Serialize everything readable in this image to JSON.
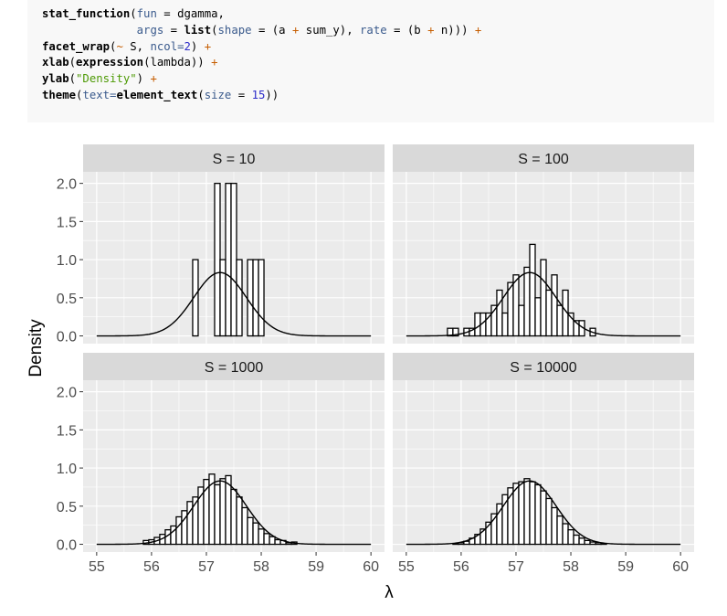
{
  "code": {
    "lines": [
      [
        {
          "t": "stat_function",
          "c": "fn"
        },
        {
          "t": "(",
          "c": ""
        },
        {
          "t": "fun",
          "c": "arg"
        },
        {
          "t": " = dgamma,",
          "c": ""
        }
      ],
      [
        {
          "t": "              ",
          "c": ""
        },
        {
          "t": "args",
          "c": "arg"
        },
        {
          "t": " = ",
          "c": ""
        },
        {
          "t": "list",
          "c": "fn"
        },
        {
          "t": "(",
          "c": ""
        },
        {
          "t": "shape",
          "c": "arg"
        },
        {
          "t": " = (a ",
          "c": ""
        },
        {
          "t": "+",
          "c": "op"
        },
        {
          "t": " sum_y), ",
          "c": ""
        },
        {
          "t": "rate",
          "c": "arg"
        },
        {
          "t": " = (b ",
          "c": ""
        },
        {
          "t": "+",
          "c": "op"
        },
        {
          "t": " n))) ",
          "c": ""
        },
        {
          "t": "+",
          "c": "op"
        }
      ],
      [
        {
          "t": "facet_wrap",
          "c": "fn"
        },
        {
          "t": "(",
          "c": ""
        },
        {
          "t": "~",
          "c": "op"
        },
        {
          "t": " S, ",
          "c": ""
        },
        {
          "t": "ncol=",
          "c": "arg"
        },
        {
          "t": "2",
          "c": "num"
        },
        {
          "t": ") ",
          "c": ""
        },
        {
          "t": "+",
          "c": "op"
        }
      ],
      [
        {
          "t": "xlab",
          "c": "fn"
        },
        {
          "t": "(",
          "c": ""
        },
        {
          "t": "expression",
          "c": "fn"
        },
        {
          "t": "(lambda)) ",
          "c": ""
        },
        {
          "t": "+",
          "c": "op"
        }
      ],
      [
        {
          "t": "ylab",
          "c": "fn"
        },
        {
          "t": "(",
          "c": ""
        },
        {
          "t": "\"Density\"",
          "c": "str"
        },
        {
          "t": ") ",
          "c": ""
        },
        {
          "t": "+",
          "c": "op"
        }
      ],
      [
        {
          "t": "theme",
          "c": "fn"
        },
        {
          "t": "(",
          "c": ""
        },
        {
          "t": "text=",
          "c": "arg"
        },
        {
          "t": "element_text",
          "c": "fn"
        },
        {
          "t": "(",
          "c": ""
        },
        {
          "t": "size",
          "c": "arg"
        },
        {
          "t": " = ",
          "c": ""
        },
        {
          "t": "15",
          "c": "num"
        },
        {
          "t": "))",
          "c": ""
        }
      ]
    ]
  },
  "chart_data": {
    "type": "histogram",
    "xlabel": "λ",
    "ylabel": "Density",
    "xlim": [
      55,
      60
    ],
    "ylim": [
      0,
      2.05
    ],
    "x_ticks": [
      "55",
      "56",
      "57",
      "58",
      "59",
      "60"
    ],
    "y_ticks": [
      "0.0",
      "0.5",
      "1.0",
      "1.5",
      "2.0"
    ],
    "binwidth": 0.1,
    "curve": {
      "name": "dgamma",
      "mean": 57.25,
      "sd": 0.48
    },
    "panels": [
      {
        "strip": "S = 10",
        "bins": [
          {
            "x": 56.8,
            "y": 1.0
          },
          {
            "x": 57.2,
            "y": 2.0
          },
          {
            "x": 57.3,
            "y": 1.0
          },
          {
            "x": 57.4,
            "y": 2.0
          },
          {
            "x": 57.5,
            "y": 2.0
          },
          {
            "x": 57.6,
            "y": 1.0
          },
          {
            "x": 57.8,
            "y": 1.0
          },
          {
            "x": 57.9,
            "y": 1.0
          },
          {
            "x": 58.0,
            "y": 1.0
          }
        ]
      },
      {
        "strip": "S = 100",
        "bins": [
          {
            "x": 55.8,
            "y": 0.1
          },
          {
            "x": 55.9,
            "y": 0.1
          },
          {
            "x": 56.0,
            "y": 0.0
          },
          {
            "x": 56.1,
            "y": 0.1
          },
          {
            "x": 56.2,
            "y": 0.1
          },
          {
            "x": 56.3,
            "y": 0.3
          },
          {
            "x": 56.4,
            "y": 0.3
          },
          {
            "x": 56.5,
            "y": 0.3
          },
          {
            "x": 56.6,
            "y": 0.4
          },
          {
            "x": 56.7,
            "y": 0.6
          },
          {
            "x": 56.8,
            "y": 0.3
          },
          {
            "x": 56.9,
            "y": 0.7
          },
          {
            "x": 57.0,
            "y": 0.8
          },
          {
            "x": 57.1,
            "y": 0.4
          },
          {
            "x": 57.2,
            "y": 0.9
          },
          {
            "x": 57.3,
            "y": 1.2
          },
          {
            "x": 57.4,
            "y": 0.5
          },
          {
            "x": 57.5,
            "y": 1.0
          },
          {
            "x": 57.6,
            "y": 0.6
          },
          {
            "x": 57.7,
            "y": 0.8
          },
          {
            "x": 57.8,
            "y": 0.4
          },
          {
            "x": 57.9,
            "y": 0.6
          },
          {
            "x": 58.0,
            "y": 0.3
          },
          {
            "x": 58.1,
            "y": 0.2
          },
          {
            "x": 58.2,
            "y": 0.2
          },
          {
            "x": 58.3,
            "y": 0.0
          },
          {
            "x": 58.4,
            "y": 0.1
          }
        ]
      },
      {
        "strip": "S = 1000",
        "bins": [
          {
            "x": 55.9,
            "y": 0.05
          },
          {
            "x": 56.0,
            "y": 0.06
          },
          {
            "x": 56.1,
            "y": 0.09
          },
          {
            "x": 56.2,
            "y": 0.13
          },
          {
            "x": 56.3,
            "y": 0.19
          },
          {
            "x": 56.4,
            "y": 0.24
          },
          {
            "x": 56.5,
            "y": 0.36
          },
          {
            "x": 56.6,
            "y": 0.44
          },
          {
            "x": 56.7,
            "y": 0.56
          },
          {
            "x": 56.8,
            "y": 0.62
          },
          {
            "x": 56.9,
            "y": 0.75
          },
          {
            "x": 57.0,
            "y": 0.85
          },
          {
            "x": 57.1,
            "y": 0.92
          },
          {
            "x": 57.2,
            "y": 0.78
          },
          {
            "x": 57.3,
            "y": 0.86
          },
          {
            "x": 57.4,
            "y": 0.9
          },
          {
            "x": 57.5,
            "y": 0.72
          },
          {
            "x": 57.6,
            "y": 0.62
          },
          {
            "x": 57.7,
            "y": 0.48
          },
          {
            "x": 57.8,
            "y": 0.35
          },
          {
            "x": 57.9,
            "y": 0.28
          },
          {
            "x": 58.0,
            "y": 0.2
          },
          {
            "x": 58.1,
            "y": 0.14
          },
          {
            "x": 58.2,
            "y": 0.1
          },
          {
            "x": 58.3,
            "y": 0.06
          },
          {
            "x": 58.4,
            "y": 0.05
          },
          {
            "x": 58.5,
            "y": 0.02
          },
          {
            "x": 58.6,
            "y": 0.03
          }
        ]
      },
      {
        "strip": "S = 10000",
        "bins": [
          {
            "x": 55.9,
            "y": 0.01
          },
          {
            "x": 56.0,
            "y": 0.02
          },
          {
            "x": 56.1,
            "y": 0.04
          },
          {
            "x": 56.2,
            "y": 0.08
          },
          {
            "x": 56.3,
            "y": 0.13
          },
          {
            "x": 56.4,
            "y": 0.2
          },
          {
            "x": 56.5,
            "y": 0.29
          },
          {
            "x": 56.6,
            "y": 0.4
          },
          {
            "x": 56.7,
            "y": 0.53
          },
          {
            "x": 56.8,
            "y": 0.65
          },
          {
            "x": 56.9,
            "y": 0.74
          },
          {
            "x": 57.0,
            "y": 0.8
          },
          {
            "x": 57.1,
            "y": 0.82
          },
          {
            "x": 57.2,
            "y": 0.86
          },
          {
            "x": 57.3,
            "y": 0.82
          },
          {
            "x": 57.4,
            "y": 0.78
          },
          {
            "x": 57.5,
            "y": 0.7
          },
          {
            "x": 57.6,
            "y": 0.6
          },
          {
            "x": 57.7,
            "y": 0.48
          },
          {
            "x": 57.8,
            "y": 0.37
          },
          {
            "x": 57.9,
            "y": 0.27
          },
          {
            "x": 58.0,
            "y": 0.19
          },
          {
            "x": 58.1,
            "y": 0.12
          },
          {
            "x": 58.2,
            "y": 0.08
          },
          {
            "x": 58.3,
            "y": 0.05
          },
          {
            "x": 58.4,
            "y": 0.03
          },
          {
            "x": 58.5,
            "y": 0.02
          },
          {
            "x": 58.6,
            "y": 0.01
          }
        ]
      }
    ],
    "colors": {
      "panel_bg": "#ebebeb",
      "strip_bg": "#d9d9d9",
      "grid": "#ffffff",
      "bar_fill": "#ffffff",
      "bar_stroke": "#000000",
      "curve": "#000000"
    }
  }
}
